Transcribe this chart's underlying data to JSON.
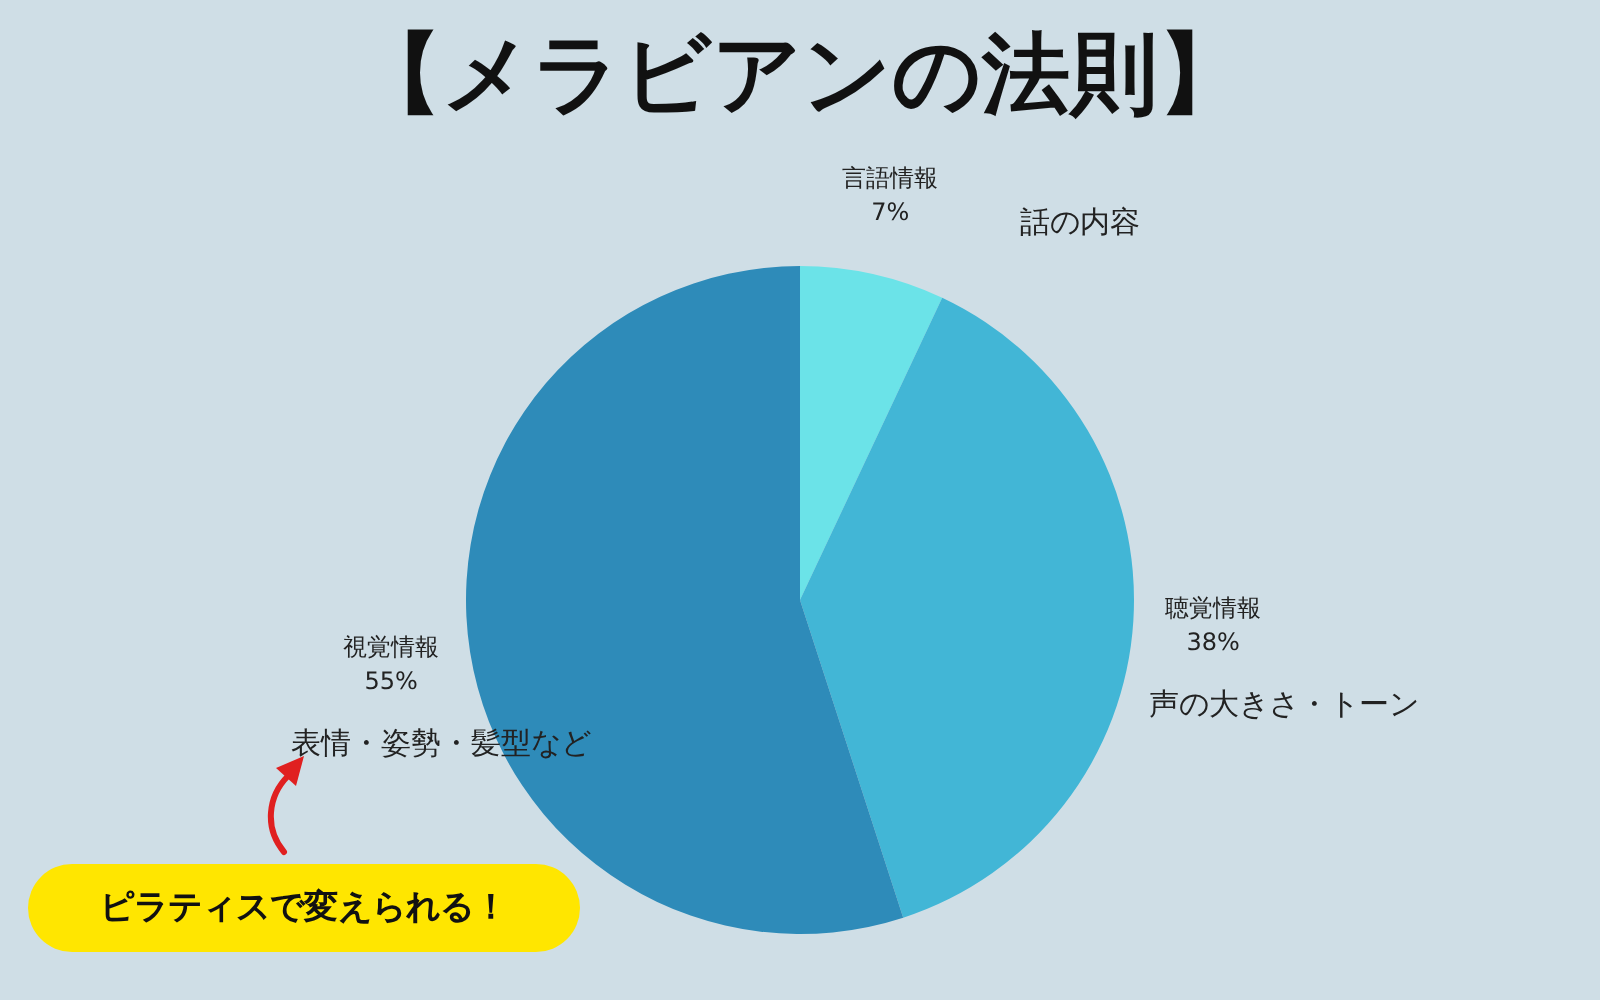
{
  "chart_data": {
    "type": "pie",
    "title": "【メラビアンの法則】",
    "categories": [
      "言語情報",
      "聴覚情報",
      "視覚情報"
    ],
    "values": [
      7,
      38,
      55
    ],
    "value_labels": [
      "7%",
      "38%",
      "55%"
    ],
    "colors": [
      "#6be3e8",
      "#42b6d6",
      "#2e8bb9"
    ],
    "annotations": [
      "話の内容",
      "声の大きさ・トーン",
      "表情・姿勢・髪型など",
      "ピラティスで変えられる！"
    ],
    "legend": false
  }
}
